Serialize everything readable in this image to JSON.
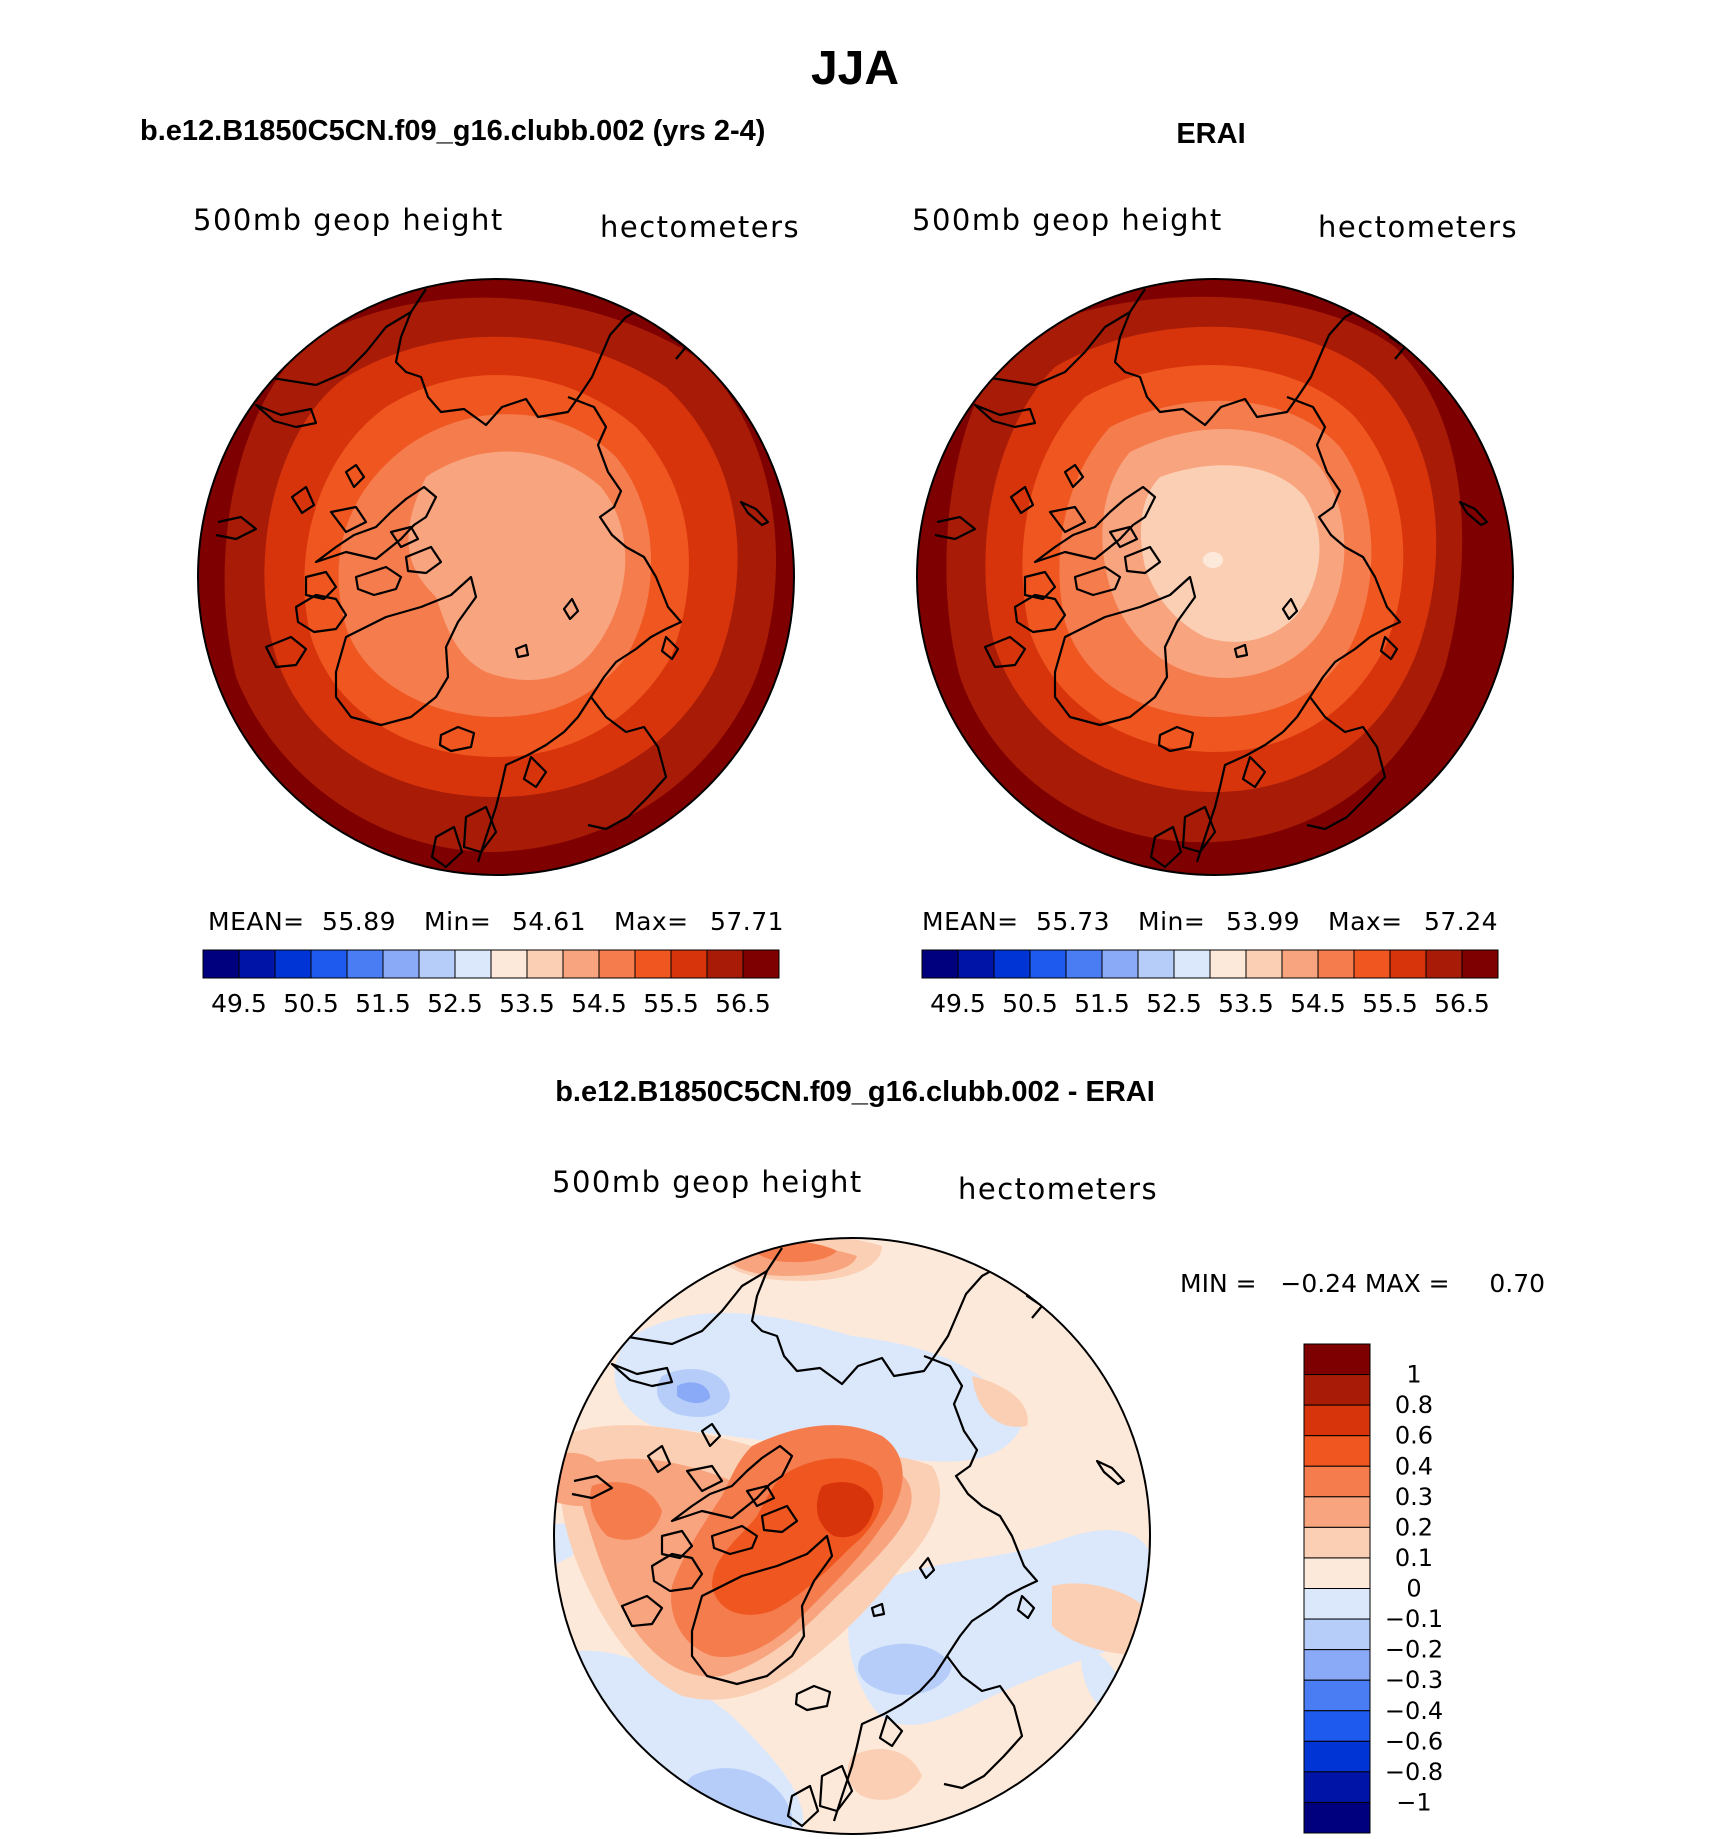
{
  "figure": {
    "title": "JJA",
    "panel_top_left": {
      "title": "b.e12.B1850C5CN.f09_g16.clubb.002 (yrs 2-4)",
      "left_label": "500mb geop height",
      "right_label": "hectometers",
      "stats": {
        "mean_label": "MEAN=",
        "mean": "55.89",
        "min_label": "Min=",
        "min": "54.61",
        "max_label": "Max=",
        "max": "57.71"
      }
    },
    "panel_top_right": {
      "title": "ERAI",
      "left_label": "500mb geop height",
      "right_label": "hectometers",
      "stats": {
        "mean_label": "MEAN=",
        "mean": "55.73",
        "min_label": "Min=",
        "min": "53.99",
        "max_label": "Max=",
        "max": "57.24"
      }
    },
    "panel_bottom": {
      "title": "b.e12.B1850C5CN.f09_g16.clubb.002 - ERAI",
      "left_label": "500mb geop height",
      "right_label": "hectometers",
      "minmax_text": "MIN =   −0.24 MAX =     0.70"
    },
    "abs_colorbar": {
      "colors": [
        "#00007f",
        "#0014a8",
        "#0034d4",
        "#1f5aef",
        "#4a7df4",
        "#8aa9f7",
        "#b6cdf9",
        "#dbe8fb",
        "#fde9da",
        "#fbcfb4",
        "#f8a47f",
        "#f57c4d",
        "#f0561f",
        "#d8340c",
        "#a81c07",
        "#7f0000"
      ],
      "labels": [
        "49.5",
        "50.5",
        "51.5",
        "52.5",
        "53.5",
        "54.5",
        "55.5",
        "56.5"
      ]
    },
    "diff_colorbar": {
      "colors": [
        "#7f0000",
        "#a81c07",
        "#d8340c",
        "#f0561f",
        "#f57c4d",
        "#f8a47f",
        "#fbcfb4",
        "#fde9da",
        "#dbe8fb",
        "#b6cdf9",
        "#8aa9f7",
        "#4a7df4",
        "#1f5aef",
        "#0034d4",
        "#0014a8",
        "#00007f"
      ],
      "labels": [
        "1",
        "0.8",
        "0.6",
        "0.4",
        "0.3",
        "0.2",
        "0.1",
        "0",
        "−0.1",
        "−0.2",
        "−0.3",
        "−0.4",
        "−0.6",
        "−0.8",
        "−1"
      ]
    }
  }
}
